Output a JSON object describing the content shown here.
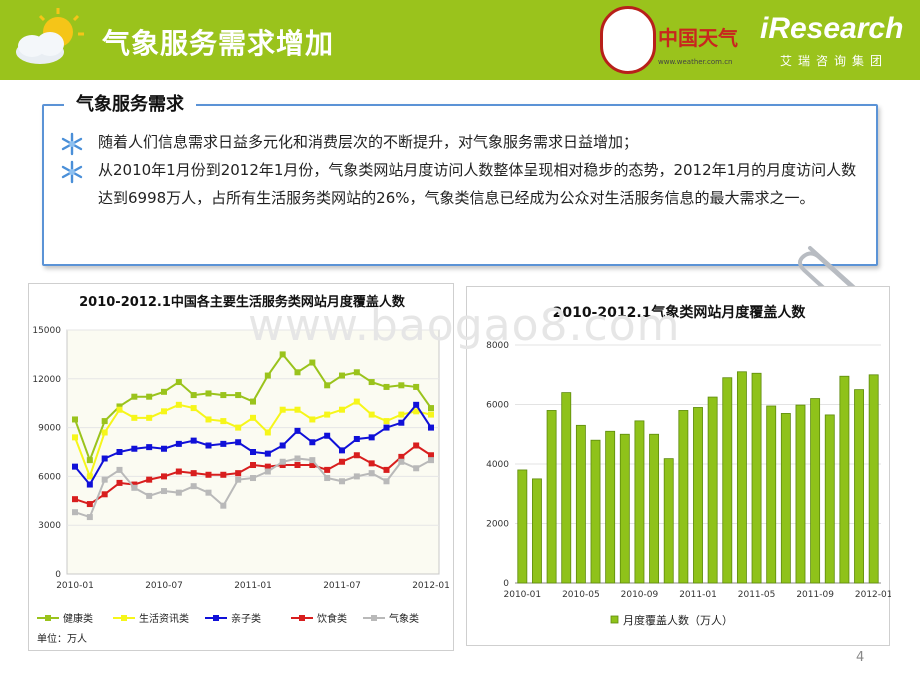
{
  "header": {
    "title": "气象服务需求增加",
    "logo_cw_text": "中国天气",
    "logo_cw_url": "www.weather.com.cn",
    "logo_ir_text": "iResearch",
    "logo_ir_cn": "艾瑞咨询集团",
    "accent_color": "#9ac31c"
  },
  "section": {
    "title": "气象服务需求",
    "bullets": [
      "随着人们信息需求日益多元化和消费层次的不断提升，对气象服务需求日益增加；",
      "从2010年1月份到2012年1月份，气象类网站月度访问人数整体呈现相对稳步的态势，2012年1月的月度访问人数达到6998万人，占所有生活服务类网站的26%，气象类信息已经成为公众对生活服务信息的最大需求之一。"
    ],
    "bullet_icon": "snowflake-icon",
    "border_color": "#5b93d6"
  },
  "watermark": "www.baogao8.com",
  "page_number": "4",
  "chart_data": [
    {
      "type": "line",
      "title": "2010-2012.1中国各主要生活服务类网站月度覆盖人数",
      "ylim": [
        0,
        15000
      ],
      "yticks": [
        "0",
        "3000",
        "6000",
        "9000",
        "12000",
        "15000"
      ],
      "xtick_labels": [
        "2010-01",
        "2010-07",
        "2011-01",
        "2011-07",
        "2012-01"
      ],
      "unit_label": "单位：万人",
      "plot_bg": "#fbfbf2",
      "series": [
        {
          "name": "健康类",
          "color": "#9ac31c",
          "values": [
            9500,
            7000,
            9400,
            10300,
            10900,
            10900,
            11200,
            11800,
            11000,
            11100,
            11000,
            11000,
            10600,
            12200,
            13500,
            12400,
            13000,
            11600,
            12200,
            12400,
            11800,
            11500,
            11600,
            11500,
            10200
          ]
        },
        {
          "name": "生活资讯类",
          "color": "#f6f61a",
          "values": [
            8400,
            6000,
            8700,
            10100,
            9600,
            9600,
            10000,
            10400,
            10200,
            9500,
            9400,
            9000,
            9600,
            8700,
            10100,
            10100,
            9500,
            9800,
            10100,
            10600,
            9800,
            9400,
            9800,
            10000,
            9800
          ]
        },
        {
          "name": "亲子类",
          "color": "#1010d8",
          "values": [
            6600,
            5500,
            7100,
            7500,
            7700,
            7800,
            7700,
            8000,
            8200,
            7900,
            8000,
            8100,
            7500,
            7400,
            7900,
            8800,
            8100,
            8500,
            7600,
            8300,
            8400,
            9000,
            9300,
            10400,
            9000
          ]
        },
        {
          "name": "饮食类",
          "color": "#d81e1e",
          "values": [
            4600,
            4300,
            4900,
            5600,
            5500,
            5800,
            6000,
            6300,
            6200,
            6100,
            6100,
            6200,
            6700,
            6600,
            6700,
            6700,
            6700,
            6400,
            6900,
            7300,
            6800,
            6400,
            7200,
            7900,
            7300
          ]
        },
        {
          "name": "气象类",
          "color": "#b9b9b9",
          "values": [
            3800,
            3500,
            5800,
            6400,
            5300,
            4800,
            5100,
            5000,
            5400,
            5000,
            4200,
            5800,
            5900,
            6300,
            6900,
            7100,
            7000,
            5900,
            5700,
            6000,
            6200,
            5700,
            6900,
            6500,
            7000
          ]
        }
      ]
    },
    {
      "type": "bar",
      "title": "2010-2012.1气象类网站月度覆盖人数",
      "ylim": [
        0,
        8000
      ],
      "yticks": [
        "0",
        "2000",
        "4000",
        "6000",
        "8000"
      ],
      "xtick_labels": [
        "2010-01",
        "2010-05",
        "2010-09",
        "2011-01",
        "2011-05",
        "2011-09",
        "2012-01"
      ],
      "legend": "月度覆盖人数（万人）",
      "bar_color": "#8fc21a",
      "values": [
        3800,
        3500,
        5800,
        6400,
        5300,
        4800,
        5100,
        5000,
        5450,
        5000,
        4180,
        5800,
        5900,
        6250,
        6900,
        7100,
        7050,
        5950,
        5700,
        5980,
        6200,
        5650,
        6950,
        6500,
        6998
      ]
    }
  ]
}
